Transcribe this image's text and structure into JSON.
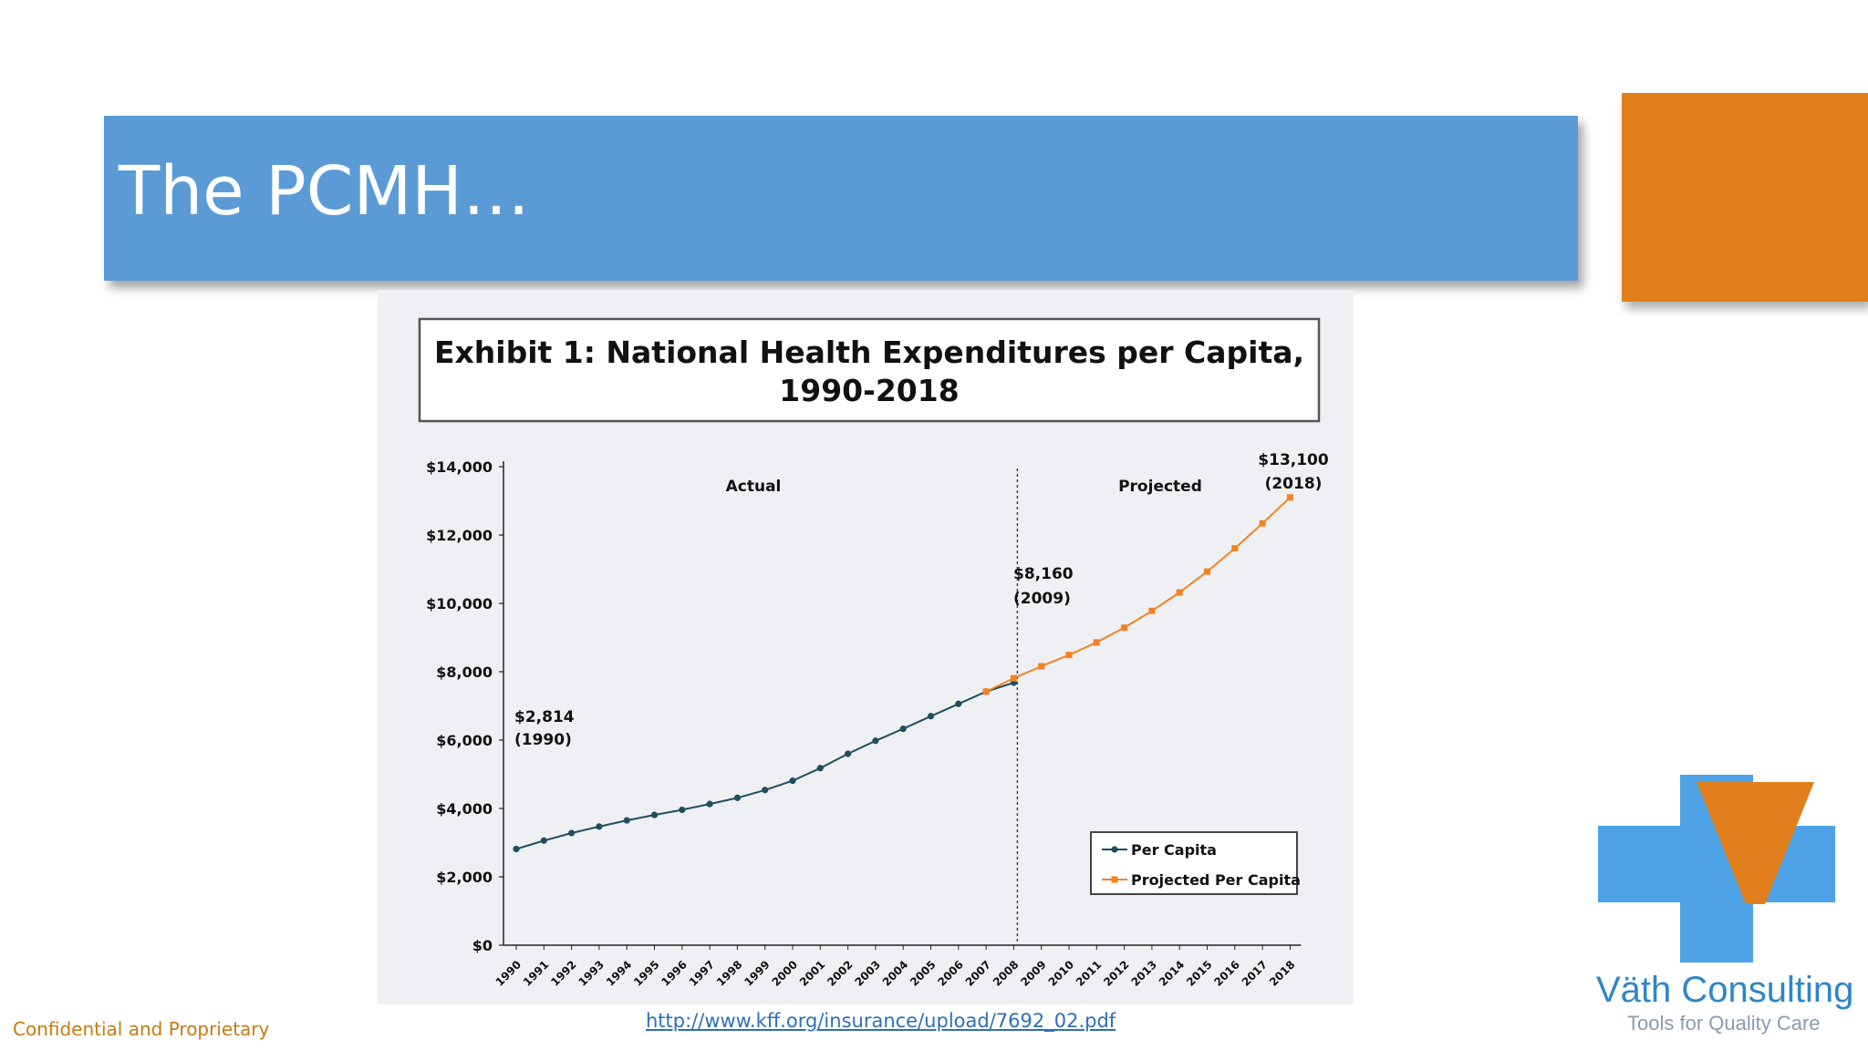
{
  "slide": {
    "title": "The PCMH…",
    "footer_left": "Confidential and Proprietary",
    "source_link": "http://www.kff.org/insurance/upload/7692_02.pdf"
  },
  "colors": {
    "title_bar": "#5b9bd5",
    "accent": "#e07f1c",
    "actual_series": "#1f4e5f",
    "projected_series": "#f58220"
  },
  "logo": {
    "name": "Väth Consulting",
    "tagline": "Tools for Quality Care",
    "icon": "v-cross-logo-icon"
  },
  "chart_data": {
    "type": "line",
    "title_line1": "Exhibit 1: National Health Expenditures per Capita,",
    "title_line2": "1990-2018",
    "xlabel": "",
    "ylabel": "",
    "ylim": [
      0,
      14000
    ],
    "yticks": [
      {
        "value": 0,
        "label": "$0"
      },
      {
        "value": 2000,
        "label": "$2,000"
      },
      {
        "value": 4000,
        "label": "$4,000"
      },
      {
        "value": 6000,
        "label": "$6,000"
      },
      {
        "value": 8000,
        "label": "$8,000"
      },
      {
        "value": 10000,
        "label": "$10,000"
      },
      {
        "value": 12000,
        "label": "$12,000"
      },
      {
        "value": 14000,
        "label": "$14,000"
      }
    ],
    "categories": [
      "1990",
      "1991",
      "1992",
      "1993",
      "1994",
      "1995",
      "1996",
      "1997",
      "1998",
      "1999",
      "2000",
      "2001",
      "2002",
      "2003",
      "2004",
      "2005",
      "2006",
      "2007",
      "2008",
      "2009",
      "2010",
      "2011",
      "2012",
      "2013",
      "2014",
      "2015",
      "2016",
      "2017",
      "2018"
    ],
    "divider_year": "2008",
    "region_labels": {
      "actual": "Actual",
      "projected": "Projected"
    },
    "series": [
      {
        "name": "Per Capita",
        "color": "#1f4e5f",
        "x": [
          "1990",
          "1991",
          "1992",
          "1993",
          "1994",
          "1995",
          "1996",
          "1997",
          "1998",
          "1999",
          "2000",
          "2001",
          "2002",
          "2003",
          "2004",
          "2005",
          "2006",
          "2007",
          "2008"
        ],
        "values": [
          2814,
          3060,
          3280,
          3470,
          3650,
          3810,
          3960,
          4130,
          4310,
          4540,
          4810,
          5180,
          5600,
          5980,
          6330,
          6700,
          7060,
          7420,
          7680
        ]
      },
      {
        "name": "Projected Per Capita",
        "color": "#f58220",
        "x": [
          "2007",
          "2008",
          "2009",
          "2010",
          "2011",
          "2012",
          "2013",
          "2014",
          "2015",
          "2016",
          "2017",
          "2018"
        ],
        "values": [
          7420,
          7810,
          8160,
          8490,
          8860,
          9290,
          9780,
          10320,
          10930,
          11610,
          12340,
          13100
        ]
      }
    ],
    "annotations": [
      {
        "line1": "$2,814",
        "line2": "(1990)"
      },
      {
        "line1": "$8,160",
        "line2": "(2009)"
      },
      {
        "line1": "$13,100",
        "line2": "(2018)"
      }
    ],
    "legend_position": "bottom-right"
  }
}
